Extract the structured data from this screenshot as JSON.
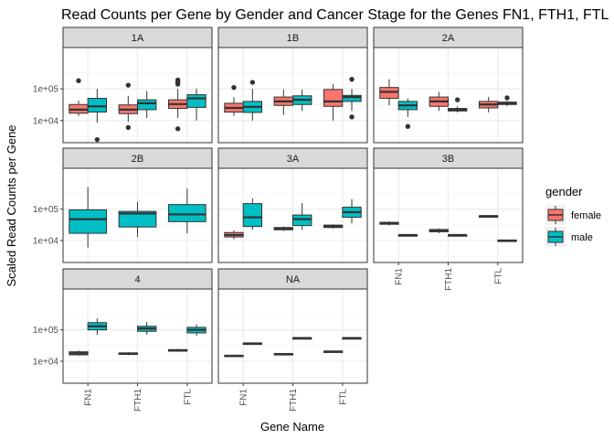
{
  "chart_data": {
    "type": "boxplot",
    "title": "Read Counts per Gene by Gender and Cancer Stage for the Genes FN1, FTH1, FTL",
    "xlabel": "Gene Name",
    "ylabel": "Scaled Read Counts per Gene",
    "y_scale": "log10",
    "ylim": [
      2000,
      2000000
    ],
    "y_ticks": [
      10000,
      100000
    ],
    "y_tick_labels": [
      "1e+04",
      "1e+05"
    ],
    "categories": [
      "FN1",
      "FTH1",
      "FTL"
    ],
    "facet_rows": 3,
    "facet_cols": 3,
    "grid": true,
    "legend": {
      "title": "gender",
      "position": "right",
      "entries": [
        {
          "label": "female",
          "color": "#F8766D"
        },
        {
          "label": "male",
          "color": "#00BFC4"
        }
      ]
    },
    "facets": [
      {
        "label": "1A",
        "boxes": [
          {
            "gene": "FN1",
            "gender": "female",
            "min": 14000,
            "q1": 17000,
            "median": 22000,
            "q3": 32000,
            "max": 42000,
            "outliers": [
              180000
            ]
          },
          {
            "gene": "FN1",
            "gender": "male",
            "min": 8500,
            "q1": 18500,
            "median": 28000,
            "q3": 50000,
            "max": 100000,
            "outliers": [
              2500
            ]
          },
          {
            "gene": "FTH1",
            "gender": "female",
            "min": 9000,
            "q1": 16500,
            "median": 22000,
            "q3": 31000,
            "max": 60000,
            "outliers": [
              130000,
              6000
            ]
          },
          {
            "gene": "FTH1",
            "gender": "male",
            "min": 12000,
            "q1": 22000,
            "median": 35000,
            "q3": 45000,
            "max": 85000,
            "outliers": []
          },
          {
            "gene": "FTL",
            "gender": "female",
            "min": 12000,
            "q1": 24000,
            "median": 33000,
            "q3": 45000,
            "max": 100000,
            "outliers": [
              190000,
              165000,
              140000,
              5500
            ]
          },
          {
            "gene": "FTL",
            "gender": "male",
            "min": 10000,
            "q1": 26000,
            "median": 50000,
            "q3": 65000,
            "max": 100000,
            "outliers": []
          }
        ]
      },
      {
        "label": "1B",
        "boxes": [
          {
            "gene": "FN1",
            "gender": "female",
            "min": 14000,
            "q1": 18500,
            "median": 25000,
            "q3": 35000,
            "max": 55000,
            "outliers": [
              110000
            ]
          },
          {
            "gene": "FN1",
            "gender": "male",
            "min": 10000,
            "q1": 18000,
            "median": 27000,
            "q3": 40000,
            "max": 100000,
            "outliers": [
              160000
            ]
          },
          {
            "gene": "FTH1",
            "gender": "female",
            "min": 15000,
            "q1": 30000,
            "median": 40000,
            "q3": 55000,
            "max": 95000,
            "outliers": []
          },
          {
            "gene": "FTH1",
            "gender": "male",
            "min": 20000,
            "q1": 32000,
            "median": 45000,
            "q3": 60000,
            "max": 95000,
            "outliers": []
          },
          {
            "gene": "FTL",
            "gender": "female",
            "min": 10000,
            "q1": 28000,
            "median": 40000,
            "q3": 95000,
            "max": 140000,
            "outliers": []
          },
          {
            "gene": "FTL",
            "gender": "male",
            "min": 20000,
            "q1": 40000,
            "median": 55000,
            "q3": 62000,
            "max": 100000,
            "outliers": [
              200000,
              13000
            ]
          }
        ]
      },
      {
        "label": "2A",
        "boxes": [
          {
            "gene": "FN1",
            "gender": "female",
            "min": 30000,
            "q1": 50000,
            "median": 80000,
            "q3": 110000,
            "max": 200000,
            "outliers": []
          },
          {
            "gene": "FN1",
            "gender": "male",
            "min": 13000,
            "q1": 22000,
            "median": 30000,
            "q3": 40000,
            "max": 50000,
            "outliers": [
              6500
            ]
          },
          {
            "gene": "FTH1",
            "gender": "female",
            "min": 20000,
            "q1": 28000,
            "median": 40000,
            "q3": 55000,
            "max": 80000,
            "outliers": []
          },
          {
            "gene": "FTH1",
            "gender": "male",
            "min": 18000,
            "q1": 20000,
            "median": 22000,
            "q3": 24000,
            "max": 28000,
            "outliers": [
              45000
            ]
          },
          {
            "gene": "FTL",
            "gender": "female",
            "min": 18000,
            "q1": 25000,
            "median": 32000,
            "q3": 40000,
            "max": 55000,
            "outliers": []
          },
          {
            "gene": "FTL",
            "gender": "male",
            "min": 28000,
            "q1": 32000,
            "median": 35000,
            "q3": 38000,
            "max": 42000,
            "outliers": [
              52000
            ]
          }
        ]
      },
      {
        "label": "2B",
        "boxes": [
          {
            "gene": "FN1",
            "gender": "male",
            "min": 6000,
            "q1": 17000,
            "median": 48000,
            "q3": 95000,
            "max": 500000,
            "outliers": []
          },
          {
            "gene": "FTH1",
            "gender": "male",
            "min": 13000,
            "q1": 27000,
            "median": 73000,
            "q3": 85000,
            "max": 170000,
            "outliers": []
          },
          {
            "gene": "FTL",
            "gender": "male",
            "min": 17000,
            "q1": 40000,
            "median": 68000,
            "q3": 140000,
            "max": 450000,
            "outliers": []
          }
        ]
      },
      {
        "label": "3A",
        "boxes": [
          {
            "gene": "FN1",
            "gender": "female",
            "min": 11000,
            "q1": 13000,
            "median": 15000,
            "q3": 18000,
            "max": 21000,
            "outliers": []
          },
          {
            "gene": "FN1",
            "gender": "male",
            "min": 22000,
            "q1": 28000,
            "median": 55000,
            "q3": 150000,
            "max": 220000,
            "outliers": []
          },
          {
            "gene": "FTH1",
            "gender": "female",
            "min": 20000,
            "q1": 22000,
            "median": 24000,
            "q3": 26000,
            "max": 28000,
            "outliers": []
          },
          {
            "gene": "FTH1",
            "gender": "male",
            "min": 22000,
            "q1": 30000,
            "median": 48000,
            "q3": 65000,
            "max": 155000,
            "outliers": []
          },
          {
            "gene": "FTL",
            "gender": "female",
            "min": 24000,
            "q1": 26000,
            "median": 28000,
            "q3": 31000,
            "max": 33000,
            "outliers": []
          },
          {
            "gene": "FTL",
            "gender": "male",
            "min": 35000,
            "q1": 55000,
            "median": 80000,
            "q3": 115000,
            "max": 210000,
            "outliers": []
          }
        ]
      },
      {
        "label": "3B",
        "boxes": [
          {
            "gene": "FN1",
            "gender": "female",
            "min": 30000,
            "q1": 33000,
            "median": 35000,
            "q3": 38000,
            "max": 41000,
            "outliers": []
          },
          {
            "gene": "FN1",
            "gender": "male",
            "min": 14500,
            "q1": 14800,
            "median": 15000,
            "q3": 15200,
            "max": 15500,
            "outliers": []
          },
          {
            "gene": "FTH1",
            "gender": "female",
            "min": 17000,
            "q1": 19000,
            "median": 20500,
            "q3": 22500,
            "max": 24500,
            "outliers": []
          },
          {
            "gene": "FTH1",
            "gender": "male",
            "min": 14500,
            "q1": 14800,
            "median": 15000,
            "q3": 15200,
            "max": 15500,
            "outliers": []
          },
          {
            "gene": "FTL",
            "gender": "female",
            "min": 58000,
            "q1": 59000,
            "median": 60000,
            "q3": 61000,
            "max": 62000,
            "outliers": []
          },
          {
            "gene": "FTL",
            "gender": "male",
            "min": 9500,
            "q1": 9700,
            "median": 10000,
            "q3": 10300,
            "max": 10500,
            "outliers": []
          }
        ]
      },
      {
        "label": "4",
        "boxes": [
          {
            "gene": "FN1",
            "gender": "female",
            "min": 15000,
            "q1": 16000,
            "median": 18000,
            "q3": 20000,
            "max": 22000,
            "outliers": []
          },
          {
            "gene": "FN1",
            "gender": "male",
            "min": 70000,
            "q1": 100000,
            "median": 130000,
            "q3": 170000,
            "max": 230000,
            "outliers": []
          },
          {
            "gene": "FTH1",
            "gender": "female",
            "min": 15500,
            "q1": 16500,
            "median": 17500,
            "q3": 18500,
            "max": 19500,
            "outliers": []
          },
          {
            "gene": "FTH1",
            "gender": "male",
            "min": 70000,
            "q1": 90000,
            "median": 110000,
            "q3": 130000,
            "max": 180000,
            "outliers": []
          },
          {
            "gene": "FTL",
            "gender": "female",
            "min": 20000,
            "q1": 21000,
            "median": 22000,
            "q3": 23500,
            "max": 25000,
            "outliers": []
          },
          {
            "gene": "FTL",
            "gender": "male",
            "min": 65000,
            "q1": 80000,
            "median": 100000,
            "q3": 120000,
            "max": 150000,
            "outliers": []
          }
        ]
      },
      {
        "label": "NA",
        "boxes": [
          {
            "gene": "FN1",
            "gender": "female",
            "min": 14000,
            "q1": 14500,
            "median": 15000,
            "q3": 15500,
            "max": 16000,
            "outliers": []
          },
          {
            "gene": "FN1",
            "gender": "male",
            "min": 35000,
            "q1": 36000,
            "median": 37000,
            "q3": 38000,
            "max": 39000,
            "outliers": []
          },
          {
            "gene": "FTH1",
            "gender": "female",
            "min": 16000,
            "q1": 16500,
            "median": 17000,
            "q3": 17500,
            "max": 18000,
            "outliers": []
          },
          {
            "gene": "FTH1",
            "gender": "male",
            "min": 53000,
            "q1": 54000,
            "median": 55000,
            "q3": 56000,
            "max": 57000,
            "outliers": []
          },
          {
            "gene": "FTL",
            "gender": "female",
            "min": 19500,
            "q1": 20000,
            "median": 20500,
            "q3": 21000,
            "max": 21500,
            "outliers": []
          },
          {
            "gene": "FTL",
            "gender": "male",
            "min": 53000,
            "q1": 54000,
            "median": 55000,
            "q3": 56000,
            "max": 57000,
            "outliers": []
          }
        ]
      }
    ]
  }
}
